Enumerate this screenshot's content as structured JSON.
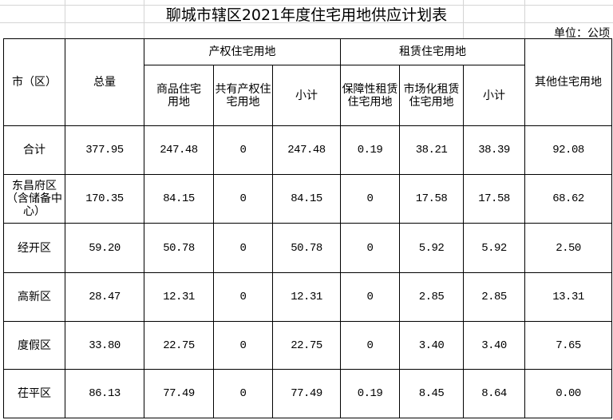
{
  "title": "聊城市辖区2021年度住宅用地供应计划表",
  "unit": "单位：公顷",
  "headers": {
    "district": "市（区）",
    "total": "总量",
    "property_group": "产权住宅用地",
    "rental_group": "租赁住宅用地",
    "other": "其他住宅用地",
    "commercial": "商品住宅用地",
    "shared": "共有产权住宅用地",
    "property_subtotal": "小计",
    "affordable_rental": "保障性租赁住宅用地",
    "market_rental": "市场化租赁住宅用地",
    "rental_subtotal": "小计"
  },
  "rows": [
    {
      "name": "合计",
      "values": [
        "377.95",
        "247.48",
        "0",
        "247.48",
        "0.19",
        "38.21",
        "38.39",
        "92.08"
      ]
    },
    {
      "name": "东昌府区（含储备中心）",
      "values": [
        "170.35",
        "84.15",
        "0",
        "84.15",
        "0",
        "17.58",
        "17.58",
        "68.62"
      ]
    },
    {
      "name": "经开区",
      "values": [
        "59.20",
        "50.78",
        "0",
        "50.78",
        "0",
        "5.92",
        "5.92",
        "2.50"
      ]
    },
    {
      "name": "高新区",
      "values": [
        "28.47",
        "12.31",
        "0",
        "12.31",
        "0",
        "2.85",
        "2.85",
        "13.31"
      ]
    },
    {
      "name": "度假区",
      "values": [
        "33.80",
        "22.75",
        "0",
        "22.75",
        "0",
        "3.40",
        "3.40",
        "7.65"
      ]
    },
    {
      "name": "茌平区",
      "values": [
        "86.13",
        "77.49",
        "0",
        "77.49",
        "0.19",
        "8.45",
        "8.64",
        "0.00"
      ]
    }
  ]
}
